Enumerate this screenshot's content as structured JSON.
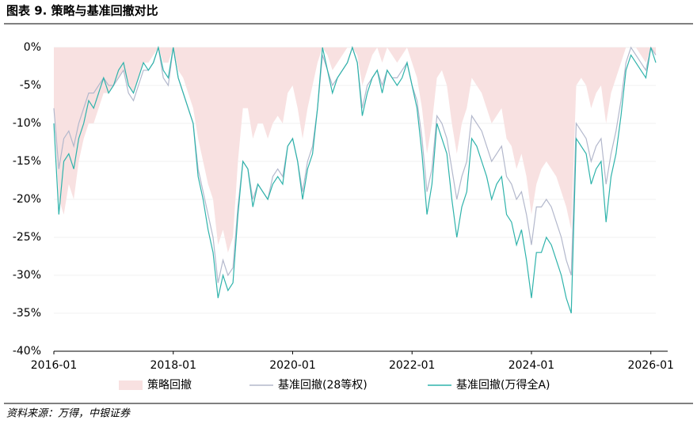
{
  "chart_data": {
    "type": "drawdown",
    "title": "图表 9. 策略与基准回撤对比",
    "source": "资料来源：万得，中银证券",
    "x": [
      "2016-01",
      "2016-02",
      "2016-03",
      "2016-04",
      "2016-05",
      "2016-06",
      "2016-07",
      "2016-08",
      "2016-09",
      "2016-10",
      "2016-11",
      "2016-12",
      "2017-01",
      "2017-02",
      "2017-03",
      "2017-04",
      "2017-05",
      "2017-06",
      "2017-07",
      "2017-08",
      "2017-09",
      "2017-10",
      "2017-11",
      "2017-12",
      "2018-01",
      "2018-02",
      "2018-03",
      "2018-04",
      "2018-05",
      "2018-06",
      "2018-07",
      "2018-08",
      "2018-09",
      "2018-10",
      "2018-11",
      "2018-12",
      "2019-01",
      "2019-02",
      "2019-03",
      "2019-04",
      "2019-05",
      "2019-06",
      "2019-07",
      "2019-08",
      "2019-09",
      "2019-10",
      "2019-11",
      "2019-12",
      "2020-01",
      "2020-02",
      "2020-03",
      "2020-04",
      "2020-05",
      "2020-06",
      "2020-07",
      "2020-08",
      "2020-09",
      "2020-10",
      "2020-11",
      "2020-12",
      "2021-01",
      "2021-02",
      "2021-03",
      "2021-04",
      "2021-05",
      "2021-06",
      "2021-07",
      "2021-08",
      "2021-09",
      "2021-10",
      "2021-11",
      "2021-12",
      "2022-01",
      "2022-02",
      "2022-03",
      "2022-04",
      "2022-05",
      "2022-06",
      "2022-07",
      "2022-08",
      "2022-09",
      "2022-10",
      "2022-11",
      "2022-12",
      "2023-01",
      "2023-02",
      "2023-03",
      "2023-04",
      "2023-05",
      "2023-06",
      "2023-07",
      "2023-08",
      "2023-09",
      "2023-10",
      "2023-11",
      "2023-12",
      "2024-01",
      "2024-02",
      "2024-03",
      "2024-04",
      "2024-05",
      "2024-06",
      "2024-07",
      "2024-08",
      "2024-09",
      "2024-10",
      "2024-11",
      "2024-12",
      "2025-01",
      "2025-02",
      "2025-03",
      "2025-04",
      "2025-05",
      "2025-06",
      "2025-07",
      "2025-08",
      "2025-09",
      "2025-10",
      "2025-11",
      "2025-12",
      "2026-01",
      "2026-02"
    ],
    "series": [
      {
        "name": "策略回撤",
        "color": "#f8e1e1",
        "style": "area",
        "values": [
          -8,
          -20,
          -22,
          -18,
          -20,
          -15,
          -12,
          -10,
          -10,
          -8,
          -6,
          -6,
          -5,
          -4,
          -3,
          -5,
          -6,
          -4,
          -2,
          -2,
          -1,
          0,
          -2,
          -2,
          0,
          -3,
          -4,
          -6,
          -8,
          -12,
          -15,
          -18,
          -20,
          -26,
          -24,
          -27,
          -25,
          -15,
          -8,
          -8,
          -12,
          -10,
          -10,
          -12,
          -10,
          -9,
          -10,
          -6,
          -5,
          -8,
          -12,
          -8,
          -5,
          -2,
          0,
          -1,
          -3,
          -2,
          -1,
          0,
          0,
          -1,
          -5,
          -3,
          -1,
          0,
          -2,
          0,
          -1,
          -2,
          -1,
          0,
          -2,
          -4,
          -8,
          -14,
          -10,
          -4,
          -3,
          -5,
          -10,
          -14,
          -10,
          -8,
          -4,
          -5,
          -6,
          -8,
          -10,
          -9,
          -8,
          -12,
          -13,
          -16,
          -14,
          -17,
          -22,
          -18,
          -16,
          -15,
          -16,
          -17,
          -19,
          -21,
          -24,
          -5,
          -4,
          -5,
          -8,
          -6,
          -5,
          -10,
          -6,
          -4,
          -2,
          0,
          0,
          0,
          -1,
          -2,
          0,
          -1
        ]
      },
      {
        "name": "基准回撤(28等权)",
        "color": "#b3b8cc",
        "style": "line",
        "values": [
          -8,
          -16,
          -12,
          -11,
          -13,
          -10,
          -8,
          -6,
          -6,
          -5,
          -4,
          -5,
          -5,
          -4,
          -3,
          -6,
          -7,
          -5,
          -3,
          -3,
          -2,
          0,
          -4,
          -5,
          0,
          -4,
          -6,
          -8,
          -10,
          -16,
          -19,
          -22,
          -25,
          -31,
          -28,
          -30,
          -29,
          -21,
          -15,
          -16,
          -20,
          -18,
          -19,
          -20,
          -17,
          -16,
          -17,
          -13,
          -12,
          -15,
          -19,
          -15,
          -13,
          -8,
          -1,
          -3,
          -5,
          -4,
          -3,
          -2,
          0,
          -2,
          -8,
          -5,
          -4,
          -3,
          -5,
          -3,
          -4,
          -4,
          -3,
          -2,
          -5,
          -7,
          -12,
          -19,
          -16,
          -9,
          -10,
          -12,
          -16,
          -20,
          -17,
          -15,
          -9,
          -10,
          -11,
          -13,
          -15,
          -14,
          -13,
          -17,
          -18,
          -20,
          -19,
          -22,
          -26,
          -21,
          -21,
          -20,
          -21,
          -23,
          -25,
          -28,
          -30,
          -10,
          -11,
          -12,
          -15,
          -13,
          -12,
          -18,
          -14,
          -11,
          -7,
          -2,
          0,
          -1,
          -2,
          -3,
          0,
          -1
        ]
      },
      {
        "name": "基准回撤(万得全A)",
        "color": "#2fb3ab",
        "style": "line",
        "values": [
          -10,
          -22,
          -15,
          -14,
          -16,
          -12,
          -10,
          -7,
          -8,
          -6,
          -4,
          -6,
          -5,
          -3,
          -2,
          -5,
          -6,
          -4,
          -2,
          -3,
          -2,
          0,
          -3,
          -4,
          0,
          -4,
          -6,
          -8,
          -10,
          -17,
          -20,
          -24,
          -27,
          -33,
          -30,
          -32,
          -31,
          -22,
          -15,
          -16,
          -21,
          -18,
          -19,
          -20,
          -18,
          -17,
          -18,
          -13,
          -12,
          -15,
          -20,
          -16,
          -14,
          -8,
          0,
          -3,
          -6,
          -4,
          -3,
          -2,
          0,
          -2,
          -9,
          -6,
          -4,
          -3,
          -6,
          -3,
          -4,
          -5,
          -4,
          -2,
          -5,
          -8,
          -14,
          -22,
          -18,
          -10,
          -12,
          -14,
          -20,
          -25,
          -21,
          -19,
          -12,
          -13,
          -15,
          -17,
          -20,
          -18,
          -17,
          -22,
          -23,
          -26,
          -24,
          -28,
          -33,
          -27,
          -27,
          -25,
          -26,
          -28,
          -30,
          -33,
          -35,
          -12,
          -13,
          -14,
          -18,
          -16,
          -15,
          -23,
          -17,
          -14,
          -9,
          -3,
          -1,
          -2,
          -3,
          -4,
          0,
          -2
        ]
      }
    ],
    "xticks": [
      "2016-01",
      "2018-01",
      "2020-01",
      "2022-01",
      "2024-01",
      "2026-01"
    ],
    "ylim": [
      -40,
      0
    ],
    "yticks": [
      {
        "value": 0,
        "label": "0%"
      },
      {
        "value": -5,
        "label": "-5%"
      },
      {
        "value": -10,
        "label": "-10%"
      },
      {
        "value": -15,
        "label": "-15%"
      },
      {
        "value": -20,
        "label": "-20%"
      },
      {
        "value": -25,
        "label": "-25%"
      },
      {
        "value": -30,
        "label": "-30%"
      },
      {
        "value": -35,
        "label": "-35%"
      },
      {
        "value": -40,
        "label": "-40%"
      }
    ],
    "grid": true,
    "legend": "bottom"
  }
}
